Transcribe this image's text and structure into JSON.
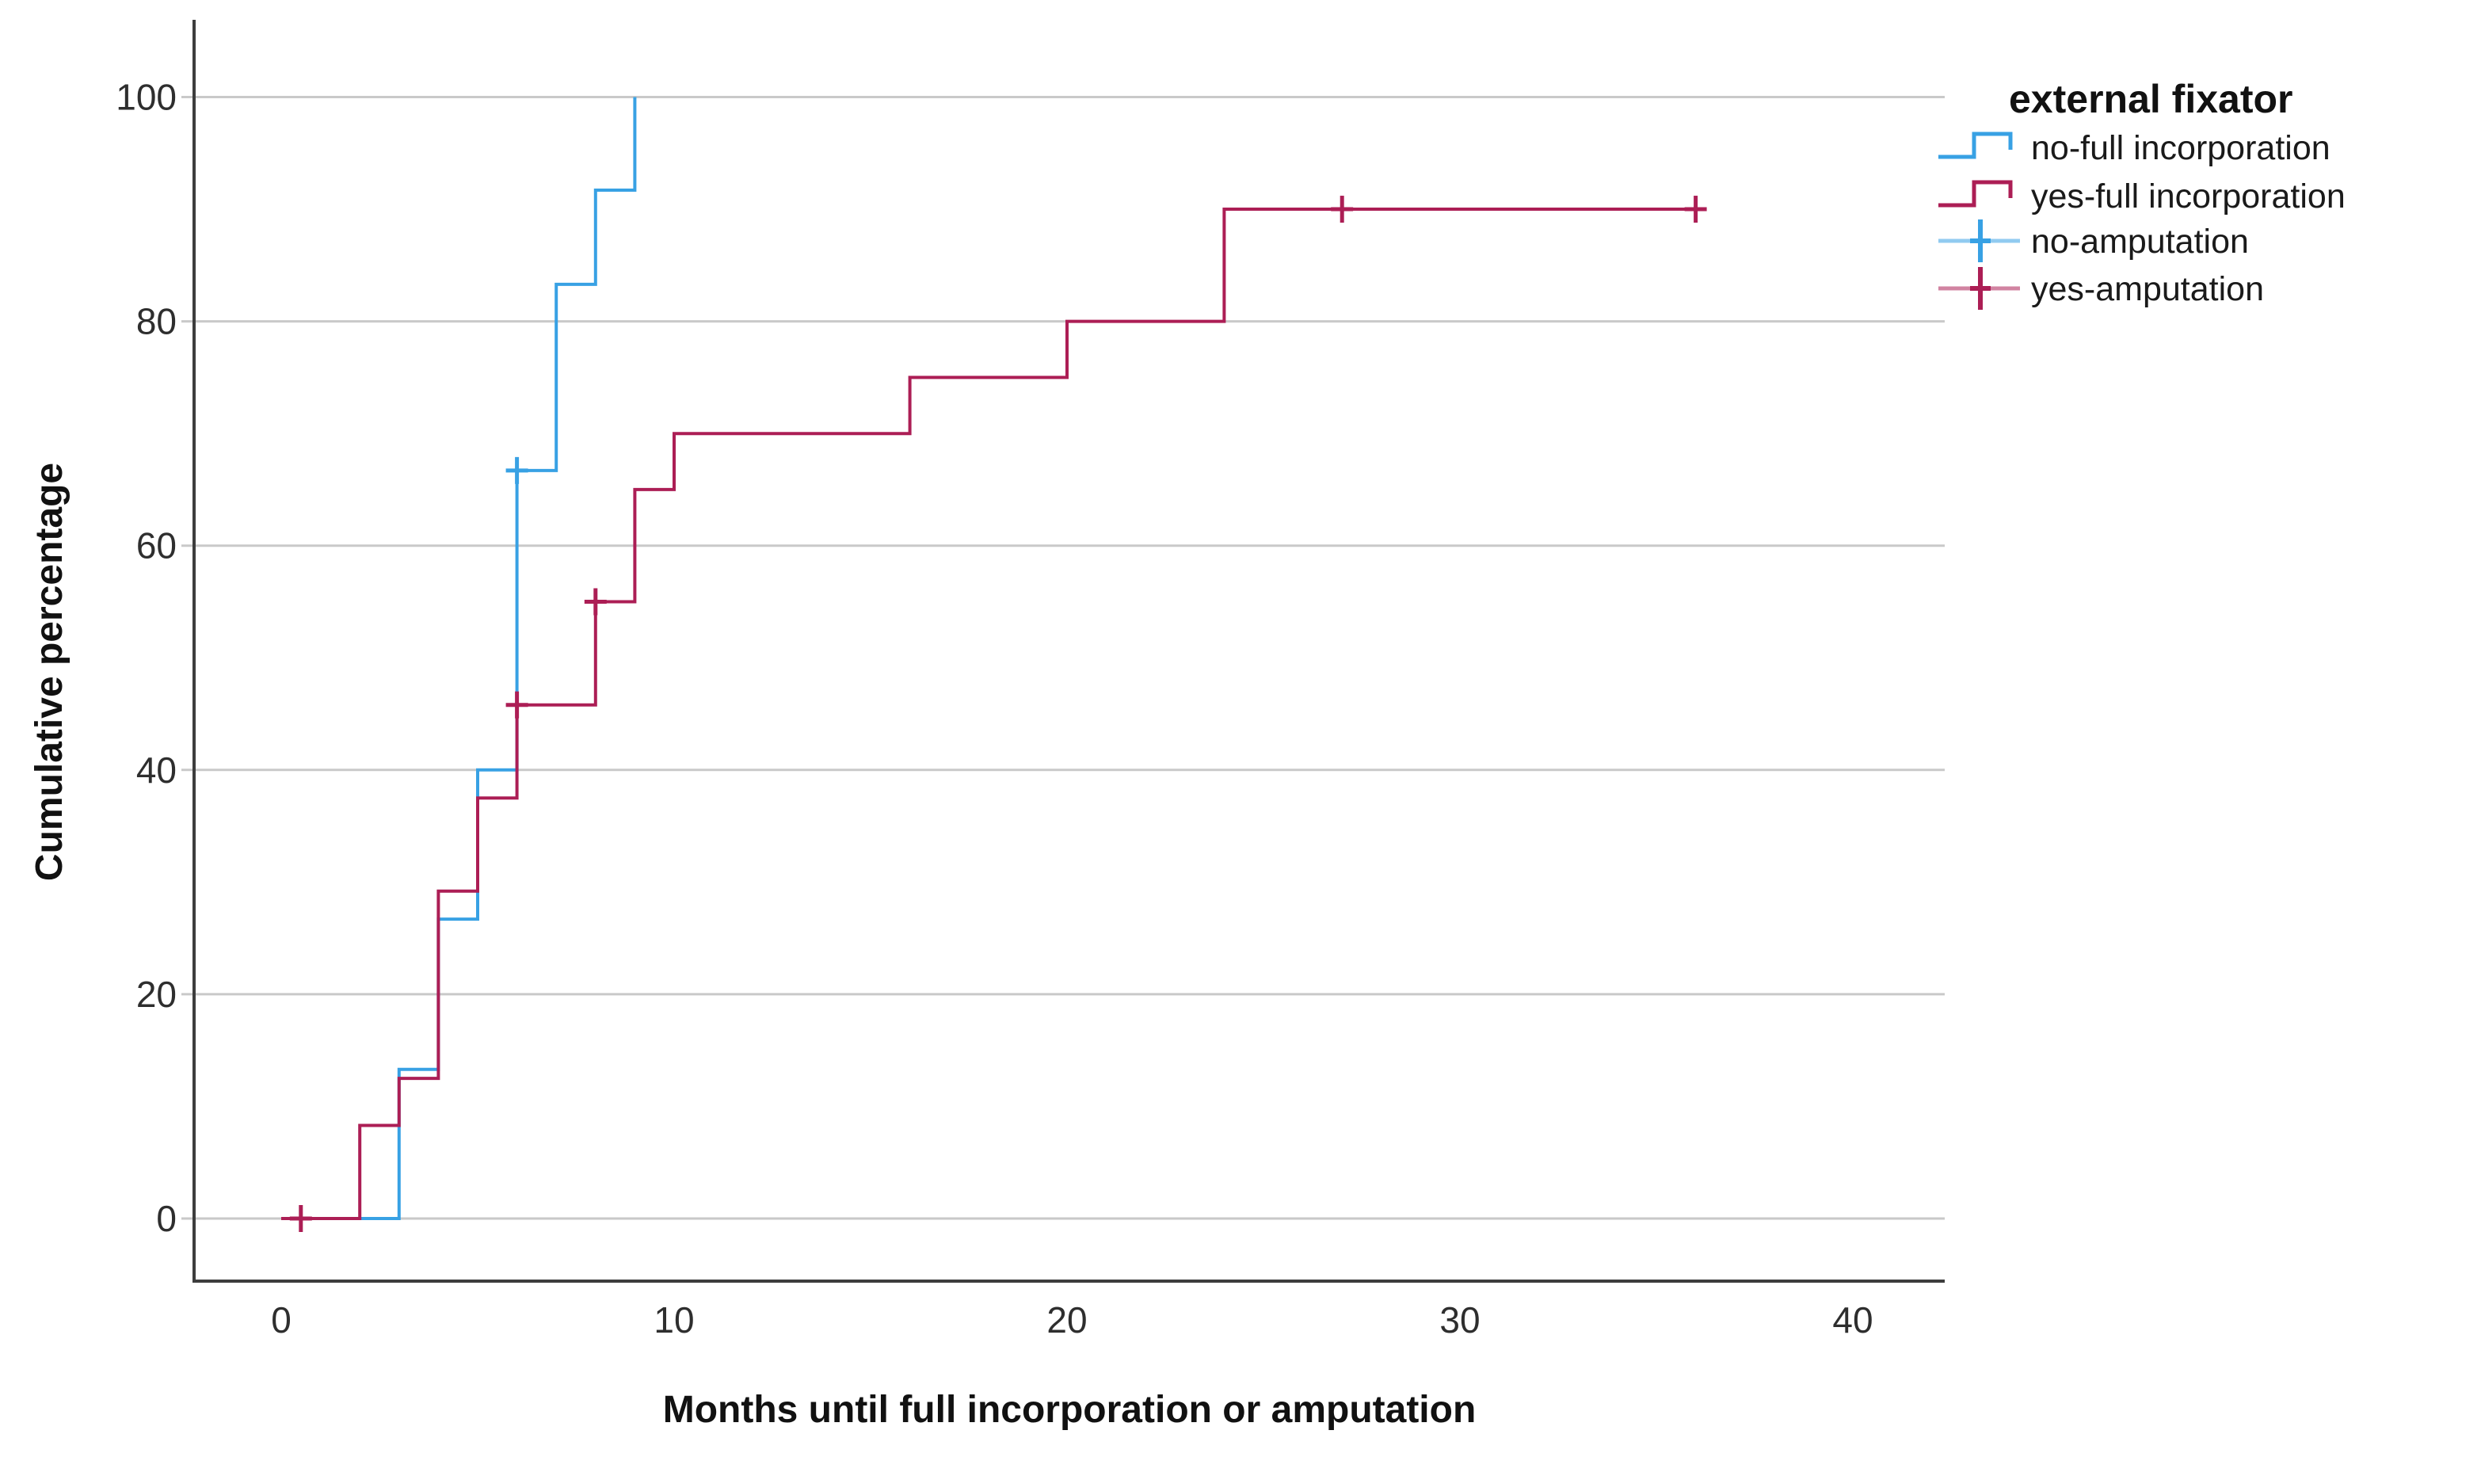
{
  "chart_data": {
    "type": "line",
    "subtype": "step",
    "title": "",
    "xlabel": "Months until full incorporation or amputation",
    "ylabel": "Cumulative percentage",
    "xticks": [
      0,
      10,
      20,
      30,
      40
    ],
    "yticks": [
      0,
      20,
      40,
      60,
      80,
      100
    ],
    "xlim": [
      -2,
      42
    ],
    "ylim": [
      0,
      100
    ],
    "grid": "horizontal-only",
    "gridline_color": "#c9c9c9",
    "axis_color": "#3d3d3d",
    "legend_title": "external fixator",
    "legend_position": "top-right",
    "series": [
      {
        "name": "no-full incorporation",
        "censor_name": "no-amputation",
        "color": "#38a1e4",
        "points": [
          [
            0,
            0
          ],
          [
            3,
            0
          ],
          [
            3,
            13.3
          ],
          [
            4,
            13.3
          ],
          [
            4,
            26.7
          ],
          [
            5,
            26.7
          ],
          [
            5,
            40
          ],
          [
            6,
            40
          ],
          [
            6,
            66.7
          ],
          [
            7,
            66.7
          ],
          [
            7,
            83.3
          ],
          [
            8,
            83.3
          ],
          [
            8,
            91.7
          ],
          [
            9,
            91.7
          ],
          [
            9,
            100
          ]
        ],
        "censors": [
          [
            6,
            66.7
          ]
        ]
      },
      {
        "name": "yes-full incorporation",
        "censor_name": "yes-amputation",
        "color": "#ac1e55",
        "points": [
          [
            0,
            0
          ],
          [
            2,
            0
          ],
          [
            2,
            8.3
          ],
          [
            3,
            8.3
          ],
          [
            3,
            12.5
          ],
          [
            4,
            12.5
          ],
          [
            4,
            29.2
          ],
          [
            5,
            29.2
          ],
          [
            5,
            37.5
          ],
          [
            6,
            37.5
          ],
          [
            6,
            45.8
          ],
          [
            8,
            45.8
          ],
          [
            8,
            55
          ],
          [
            9,
            55
          ],
          [
            9,
            65
          ],
          [
            10,
            65
          ],
          [
            10,
            70
          ],
          [
            16,
            70
          ],
          [
            16,
            75
          ],
          [
            20,
            75
          ],
          [
            20,
            80
          ],
          [
            24,
            80
          ],
          [
            24,
            90
          ],
          [
            36,
            90
          ]
        ],
        "censors": [
          [
            0.5,
            0
          ],
          [
            6,
            45.8
          ],
          [
            8,
            55
          ],
          [
            27,
            90
          ],
          [
            36,
            90
          ]
        ]
      }
    ],
    "legend": [
      {
        "label": "no-full incorporation",
        "symbol": "step",
        "series": 0
      },
      {
        "label": "yes-full incorporation",
        "symbol": "step",
        "series": 1
      },
      {
        "label": "no-amputation",
        "symbol": "plus",
        "series": 0
      },
      {
        "label": "yes-amputation",
        "symbol": "plus",
        "series": 1
      }
    ]
  }
}
